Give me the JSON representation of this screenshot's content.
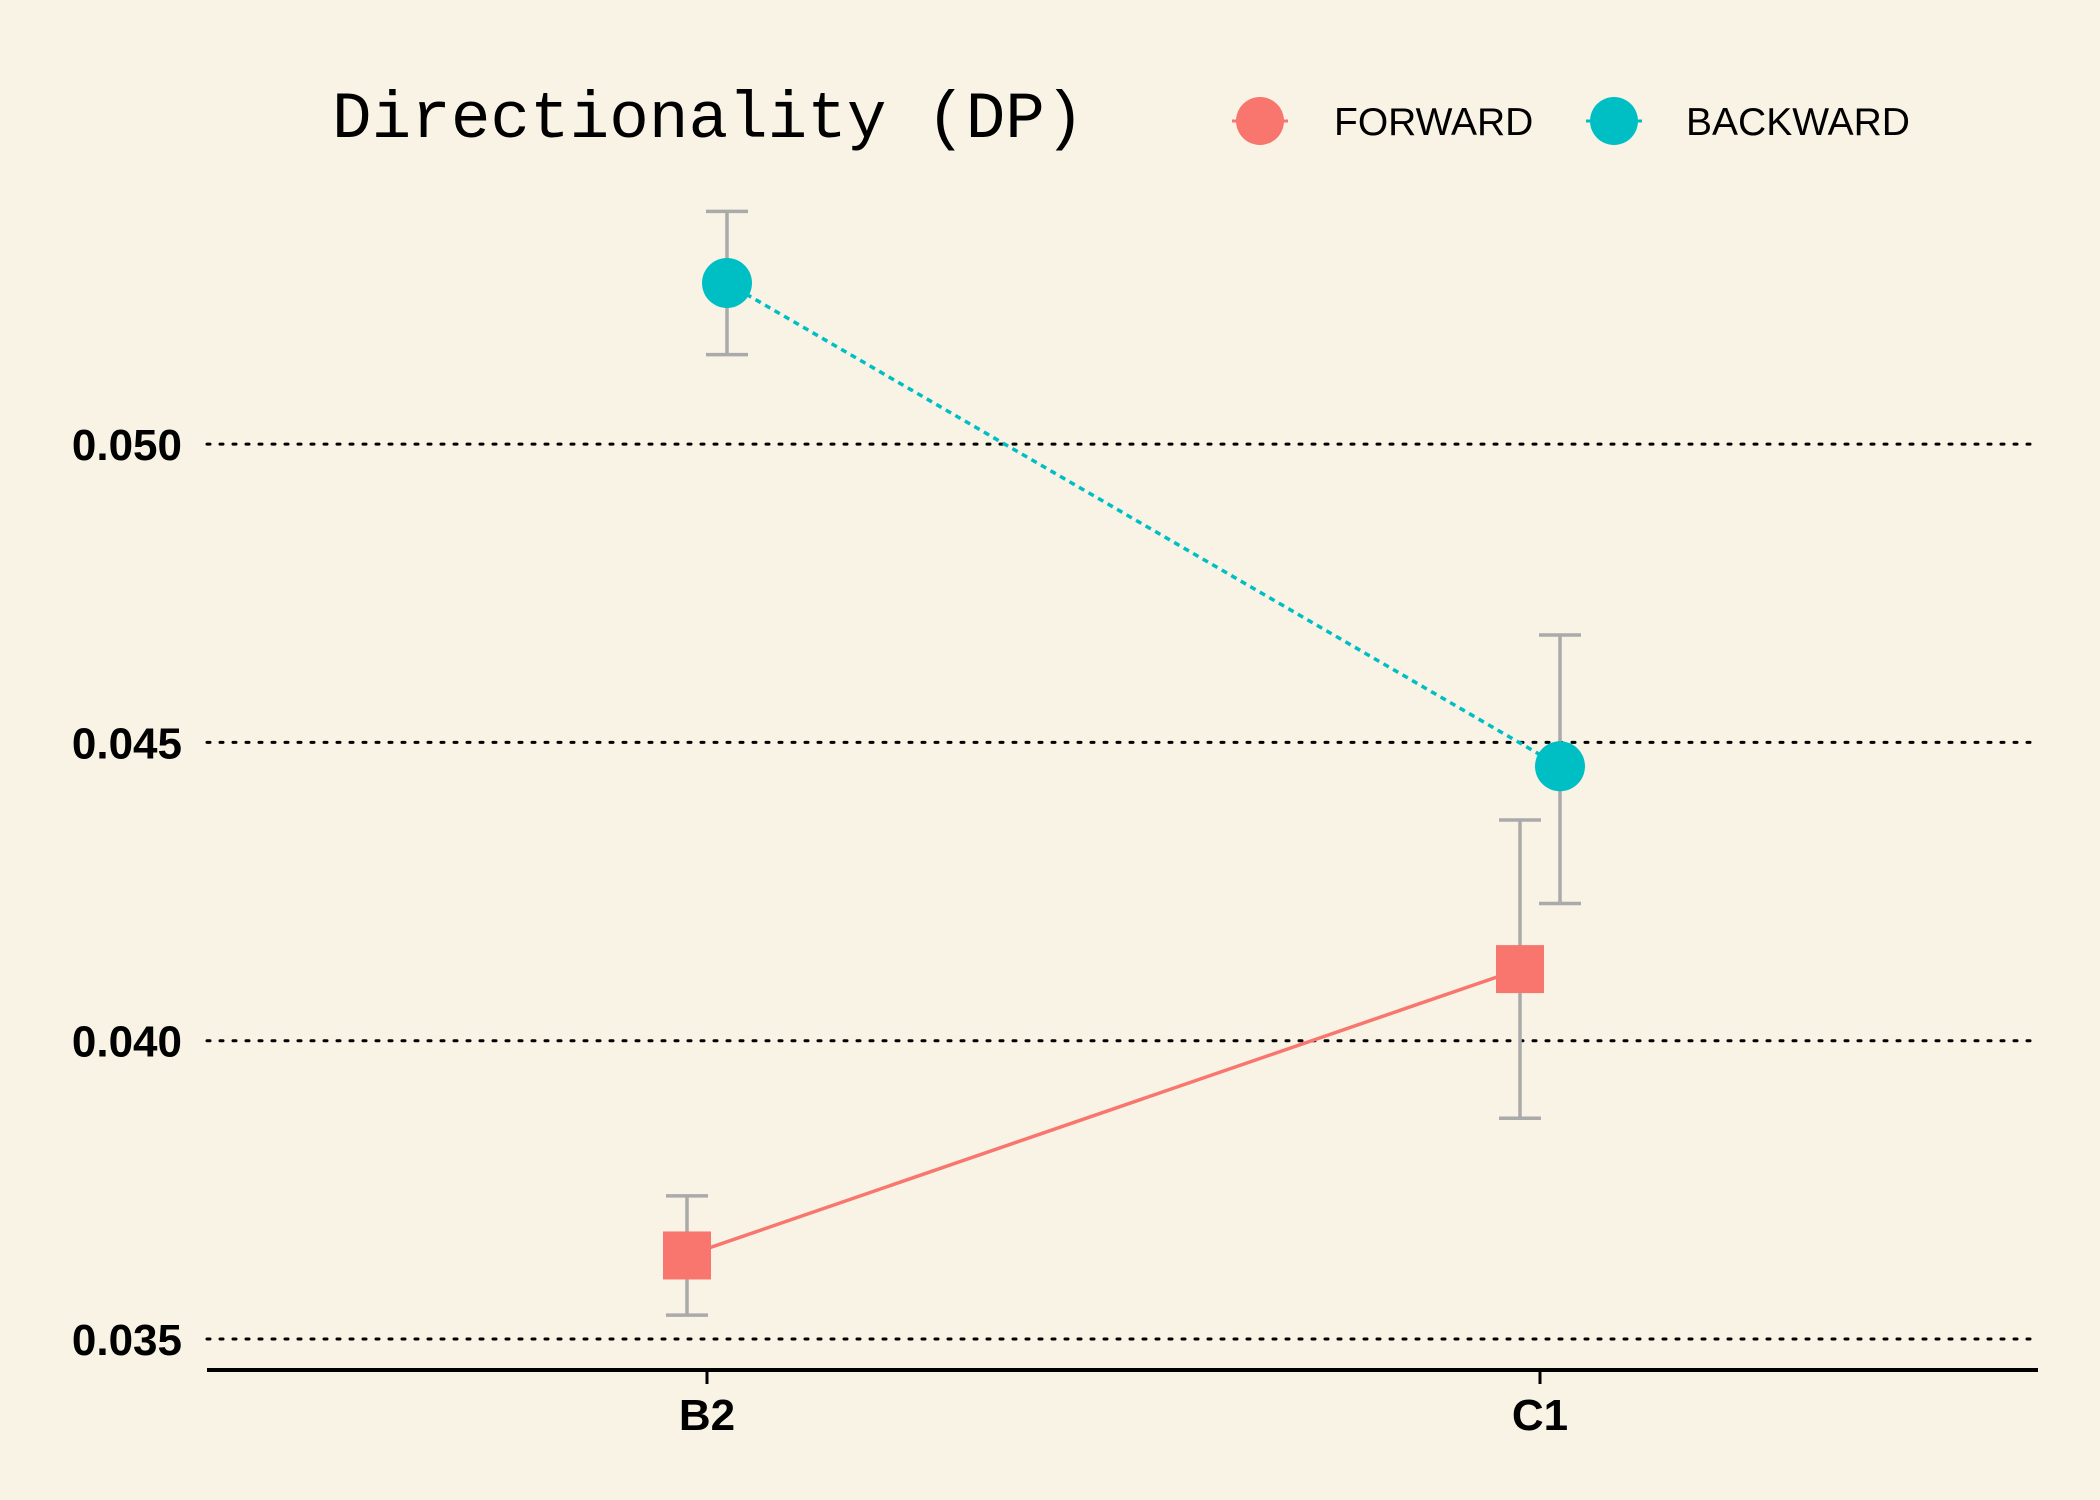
{
  "chart_data": {
    "type": "line",
    "title": "Directionality (DP)",
    "xlabel": "",
    "ylabel": "",
    "categories": [
      "B2",
      "C1"
    ],
    "yticks": [
      "0.035",
      "0.040",
      "0.045",
      "0.050"
    ],
    "ylim": [
      0.0345,
      0.0545
    ],
    "grid": "horizontal dotted",
    "legend_position": "top",
    "error_bar_color": "#aaaaaa",
    "series": [
      {
        "name": "FORWARD",
        "color": "#f8766d",
        "marker": "square",
        "line_style": "solid",
        "values": [
          0.0364,
          0.0412
        ],
        "error_low": [
          0.0354,
          0.0387
        ],
        "error_high": [
          0.0374,
          0.0437
        ]
      },
      {
        "name": "BACKWARD",
        "color": "#00bfc4",
        "marker": "circle",
        "line_style": "dotted",
        "values": [
          0.0527,
          0.0446
        ],
        "error_low": [
          0.0515,
          0.0423
        ],
        "error_high": [
          0.0539,
          0.0468
        ]
      }
    ]
  }
}
